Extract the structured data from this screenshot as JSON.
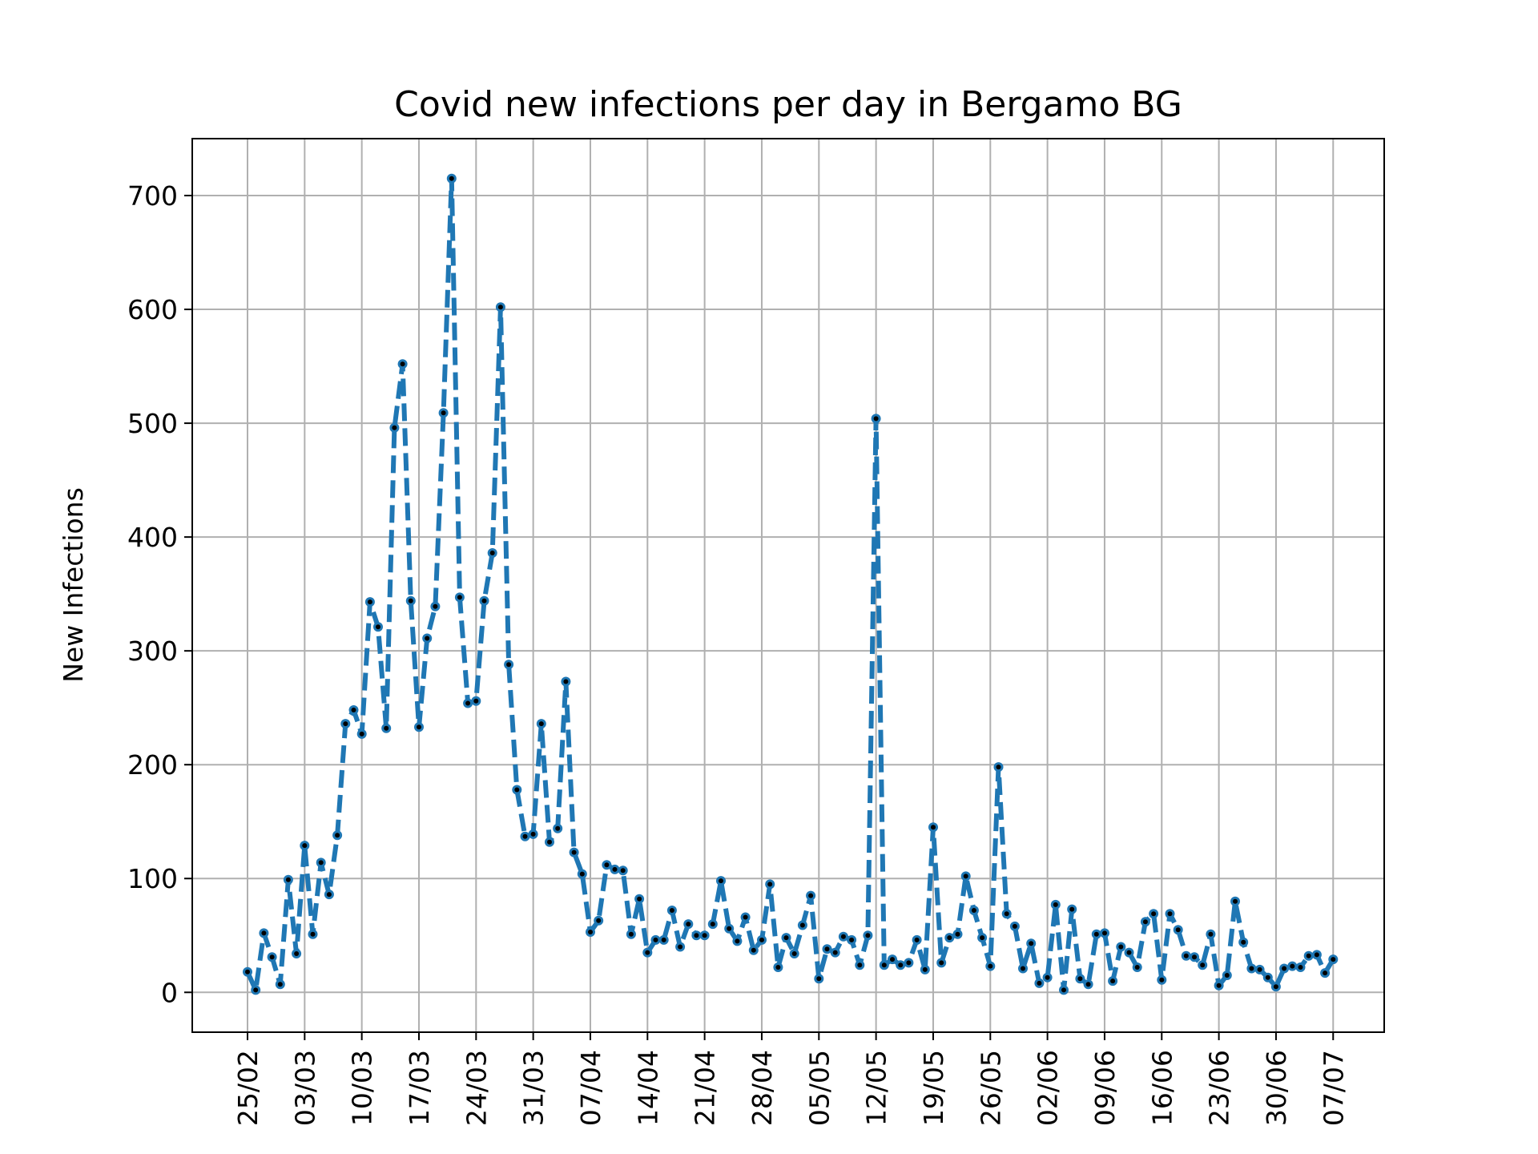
{
  "chart_data": {
    "type": "line",
    "title": "Covid new infections per day in Bergamo BG",
    "xlabel": "",
    "ylabel": "New Infections",
    "start_date": "2020-02-25",
    "date_format": "DD/MM",
    "x_ticks": [
      "25/02",
      "03/03",
      "10/03",
      "17/03",
      "24/03",
      "31/03",
      "07/04",
      "14/04",
      "21/04",
      "28/04",
      "05/05",
      "12/05",
      "19/05",
      "26/05",
      "02/06",
      "09/06",
      "16/06",
      "23/06",
      "30/06",
      "07/07"
    ],
    "y_ticks": [
      0,
      100,
      200,
      300,
      400,
      500,
      600,
      700
    ],
    "ylim": [
      -35,
      750
    ],
    "grid": true,
    "line_color": "#1f77b4",
    "line_style": "dashed",
    "marker_color": "#000000",
    "series": [
      {
        "name": "",
        "values": [
          18,
          2,
          52,
          31,
          7,
          99,
          34,
          129,
          51,
          114,
          86,
          138,
          236,
          248,
          227,
          343,
          321,
          232,
          496,
          552,
          344,
          233,
          311,
          339,
          509,
          715,
          347,
          254,
          256,
          344,
          386,
          602,
          288,
          178,
          137,
          139,
          236,
          132,
          144,
          273,
          123,
          104,
          53,
          63,
          112,
          108,
          107,
          51,
          82,
          35,
          46,
          46,
          72,
          40,
          60,
          50,
          50,
          60,
          98,
          56,
          45,
          66,
          37,
          46,
          95,
          22,
          48,
          34,
          59,
          85,
          12,
          38,
          35,
          49,
          46,
          24,
          50,
          504,
          24,
          29,
          24,
          26,
          46,
          20,
          145,
          26,
          48,
          51,
          102,
          72,
          48,
          23,
          198,
          69,
          58,
          21,
          43,
          8,
          13,
          77,
          2,
          73,
          12,
          7,
          51,
          52,
          10,
          40,
          35,
          22,
          62,
          69,
          11,
          69,
          55,
          32,
          31,
          24,
          51,
          6,
          15,
          80,
          44,
          21,
          20,
          13,
          5,
          21,
          23,
          22,
          32,
          33,
          17,
          29
        ]
      }
    ]
  }
}
